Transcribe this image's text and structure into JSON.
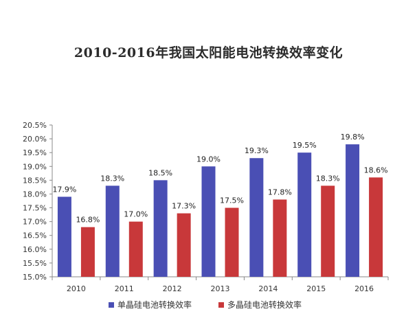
{
  "chart_data": {
    "type": "bar",
    "title": "2010-2016年我国太阳能电池转换效率变化",
    "categories": [
      "2010",
      "2011",
      "2012",
      "2013",
      "2014",
      "2015",
      "2016"
    ],
    "series": [
      {
        "name": "单晶硅电池转换效率",
        "color": "#4a4fb4",
        "values": [
          17.9,
          18.3,
          18.5,
          19.0,
          19.3,
          19.5,
          19.8
        ],
        "labels": [
          "17.9%",
          "18.3%",
          "18.5%",
          "19.0%",
          "19.3%",
          "19.5%",
          "19.8%"
        ]
      },
      {
        "name": "多晶硅电池转换效率",
        "color": "#c8383a",
        "values": [
          16.8,
          17.0,
          17.3,
          17.5,
          17.8,
          18.3,
          18.6
        ],
        "labels": [
          "16.8%",
          "17.0%",
          "17.3%",
          "17.5%",
          "17.8%",
          "18.3%",
          "18.6%"
        ]
      }
    ],
    "ylim": [
      15.0,
      20.5
    ],
    "yticks": [
      "15.0%",
      "15.5%",
      "16.0%",
      "16.5%",
      "17.0%",
      "17.5%",
      "18.0%",
      "18.5%",
      "19.0%",
      "19.5%",
      "20.0%",
      "20.5%"
    ],
    "grid": false,
    "legend_position": "bottom"
  }
}
